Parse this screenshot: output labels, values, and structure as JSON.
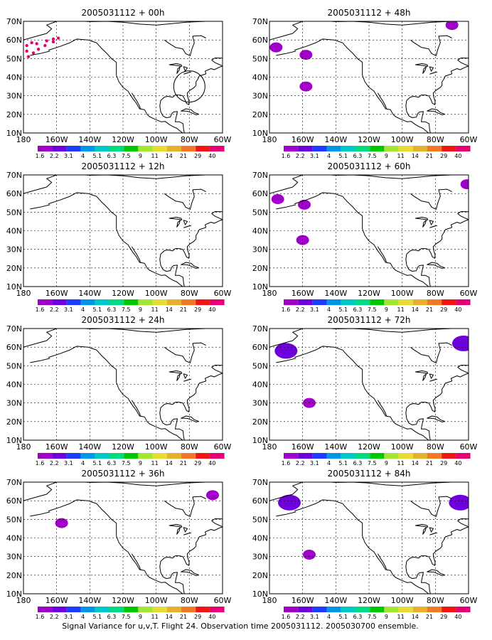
{
  "figure": {
    "footer": "Signal Variance for u,v,T. Flight 24. Observation time 2005031112. 2005030700 ensemble."
  },
  "colorbar": {
    "labels": [
      "1.6",
      "2.2",
      "3.1",
      "4",
      "5.1",
      "6.3",
      "7.5",
      "9",
      "11",
      "14",
      "21",
      "29",
      "40"
    ],
    "colors": [
      "#a000c8",
      "#6e00dc",
      "#1e3cff",
      "#0096e6",
      "#00c8c8",
      "#00dc82",
      "#00c800",
      "#a0e632",
      "#e6dc32",
      "#e6af2d",
      "#f07828",
      "#f01414",
      "#e60078"
    ]
  },
  "axes": {
    "xticks": [
      "180",
      "160W",
      "140W",
      "120W",
      "100W",
      "80W",
      "60W"
    ],
    "yticks": [
      "10N",
      "20N",
      "30N",
      "40N",
      "50N",
      "60N",
      "70N"
    ]
  },
  "chart_data": [
    {
      "type": "heatmap",
      "title": "2005031112 + 00h",
      "xlim": [
        -180,
        -60
      ],
      "ylim": [
        10,
        70
      ],
      "grid": true,
      "variance_regions": [],
      "observation_track": true,
      "marked_region": "circle near 80W, 35N"
    },
    {
      "type": "heatmap",
      "title": "2005031112 + 12h",
      "xlim": [
        -180,
        -60
      ],
      "ylim": [
        10,
        70
      ],
      "grid": true,
      "variance_regions": []
    },
    {
      "type": "heatmap",
      "title": "2005031112 + 24h",
      "xlim": [
        -180,
        -60
      ],
      "ylim": [
        10,
        70
      ],
      "grid": true,
      "variance_regions": []
    },
    {
      "type": "heatmap",
      "title": "2005031112 + 36h",
      "xlim": [
        -180,
        -60
      ],
      "ylim": [
        10,
        70
      ],
      "grid": true,
      "variance_regions": [
        {
          "lon": -157,
          "lat": 48,
          "value": 1.6
        },
        {
          "lon": -66,
          "lat": 63,
          "value": 1.6
        }
      ]
    },
    {
      "type": "heatmap",
      "title": "2005031112 + 48h",
      "xlim": [
        -180,
        -60
      ],
      "ylim": [
        10,
        70
      ],
      "grid": true,
      "variance_regions": [
        {
          "lon": -158,
          "lat": 52,
          "value": 1.6
        },
        {
          "lon": -158,
          "lat": 35,
          "value": 1.6
        },
        {
          "lon": -70,
          "lat": 68,
          "value": 1.6
        },
        {
          "lon": -176,
          "lat": 56,
          "value": 1.6
        }
      ]
    },
    {
      "type": "heatmap",
      "title": "2005031112 + 60h",
      "xlim": [
        -180,
        -60
      ],
      "ylim": [
        10,
        70
      ],
      "grid": true,
      "variance_regions": [
        {
          "lon": -175,
          "lat": 57,
          "value": 1.6
        },
        {
          "lon": -160,
          "lat": 35,
          "value": 1.6
        },
        {
          "lon": -61,
          "lat": 65,
          "value": 1.6
        },
        {
          "lon": -159,
          "lat": 54,
          "value": 1.6
        }
      ]
    },
    {
      "type": "heatmap",
      "title": "2005031112 + 72h",
      "xlim": [
        -180,
        -60
      ],
      "ylim": [
        10,
        70
      ],
      "grid": true,
      "variance_regions": [
        {
          "lon": -170,
          "lat": 58,
          "value": 2.2
        },
        {
          "lon": -156,
          "lat": 30,
          "value": 1.6
        },
        {
          "lon": -63,
          "lat": 62,
          "value": 2.2
        }
      ]
    },
    {
      "type": "heatmap",
      "title": "2005031112 + 84h",
      "xlim": [
        -180,
        -60
      ],
      "ylim": [
        10,
        70
      ],
      "grid": true,
      "variance_regions": [
        {
          "lon": -168,
          "lat": 59,
          "value": 2.2
        },
        {
          "lon": -156,
          "lat": 31,
          "value": 1.6
        },
        {
          "lon": -65,
          "lat": 59,
          "value": 2.2
        }
      ]
    }
  ]
}
